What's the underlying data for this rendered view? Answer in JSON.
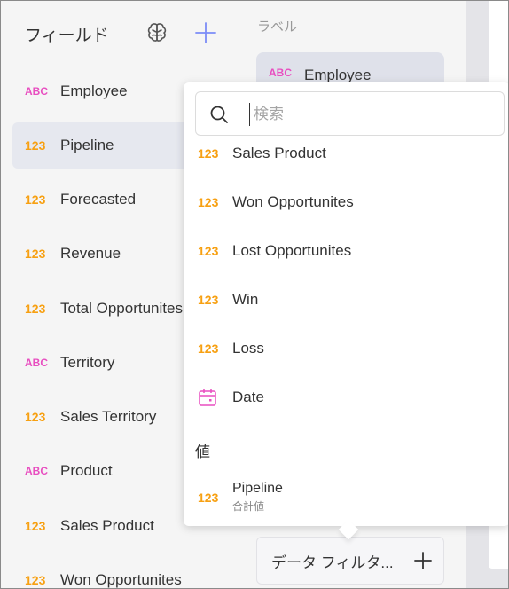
{
  "fields_panel": {
    "title": "フィールド",
    "items": [
      {
        "type": "ABC",
        "label": "Employee"
      },
      {
        "type": "123",
        "label": "Pipeline",
        "selected": true
      },
      {
        "type": "123",
        "label": "Forecasted"
      },
      {
        "type": "123",
        "label": "Revenue"
      },
      {
        "type": "123",
        "label": "Total Opportunites"
      },
      {
        "type": "ABC",
        "label": "Territory"
      },
      {
        "type": "123",
        "label": "Sales Territory"
      },
      {
        "type": "ABC",
        "label": "Product"
      },
      {
        "type": "123",
        "label": "Sales Product"
      },
      {
        "type": "123",
        "label": "Won Opportunites"
      }
    ]
  },
  "labels_col": {
    "title": "ラベル",
    "chip": {
      "type": "ABC",
      "label": "Employee"
    },
    "filter": {
      "label": "データ フィルタ..."
    }
  },
  "popup": {
    "search_placeholder": "検索",
    "search_value": "",
    "items": [
      {
        "type": "123",
        "label": "Sales Product"
      },
      {
        "type": "123",
        "label": "Won Opportunites"
      },
      {
        "type": "123",
        "label": "Lost Opportunites"
      },
      {
        "type": "123",
        "label": "Win"
      },
      {
        "type": "123",
        "label": "Loss"
      },
      {
        "type": "date",
        "label": "Date"
      }
    ],
    "values_section": "値",
    "value_item": {
      "type": "123",
      "label": "Pipeline",
      "sub": "合計値"
    }
  },
  "colors": {
    "number_badge": "#f7a012",
    "text_badge": "#e84ec0",
    "accent": "#7b8cf7",
    "date_icon": "#e84ec0"
  },
  "icons": {
    "brain": "brain-icon",
    "add": "plus-icon",
    "search": "search-icon",
    "date": "calendar-icon"
  }
}
